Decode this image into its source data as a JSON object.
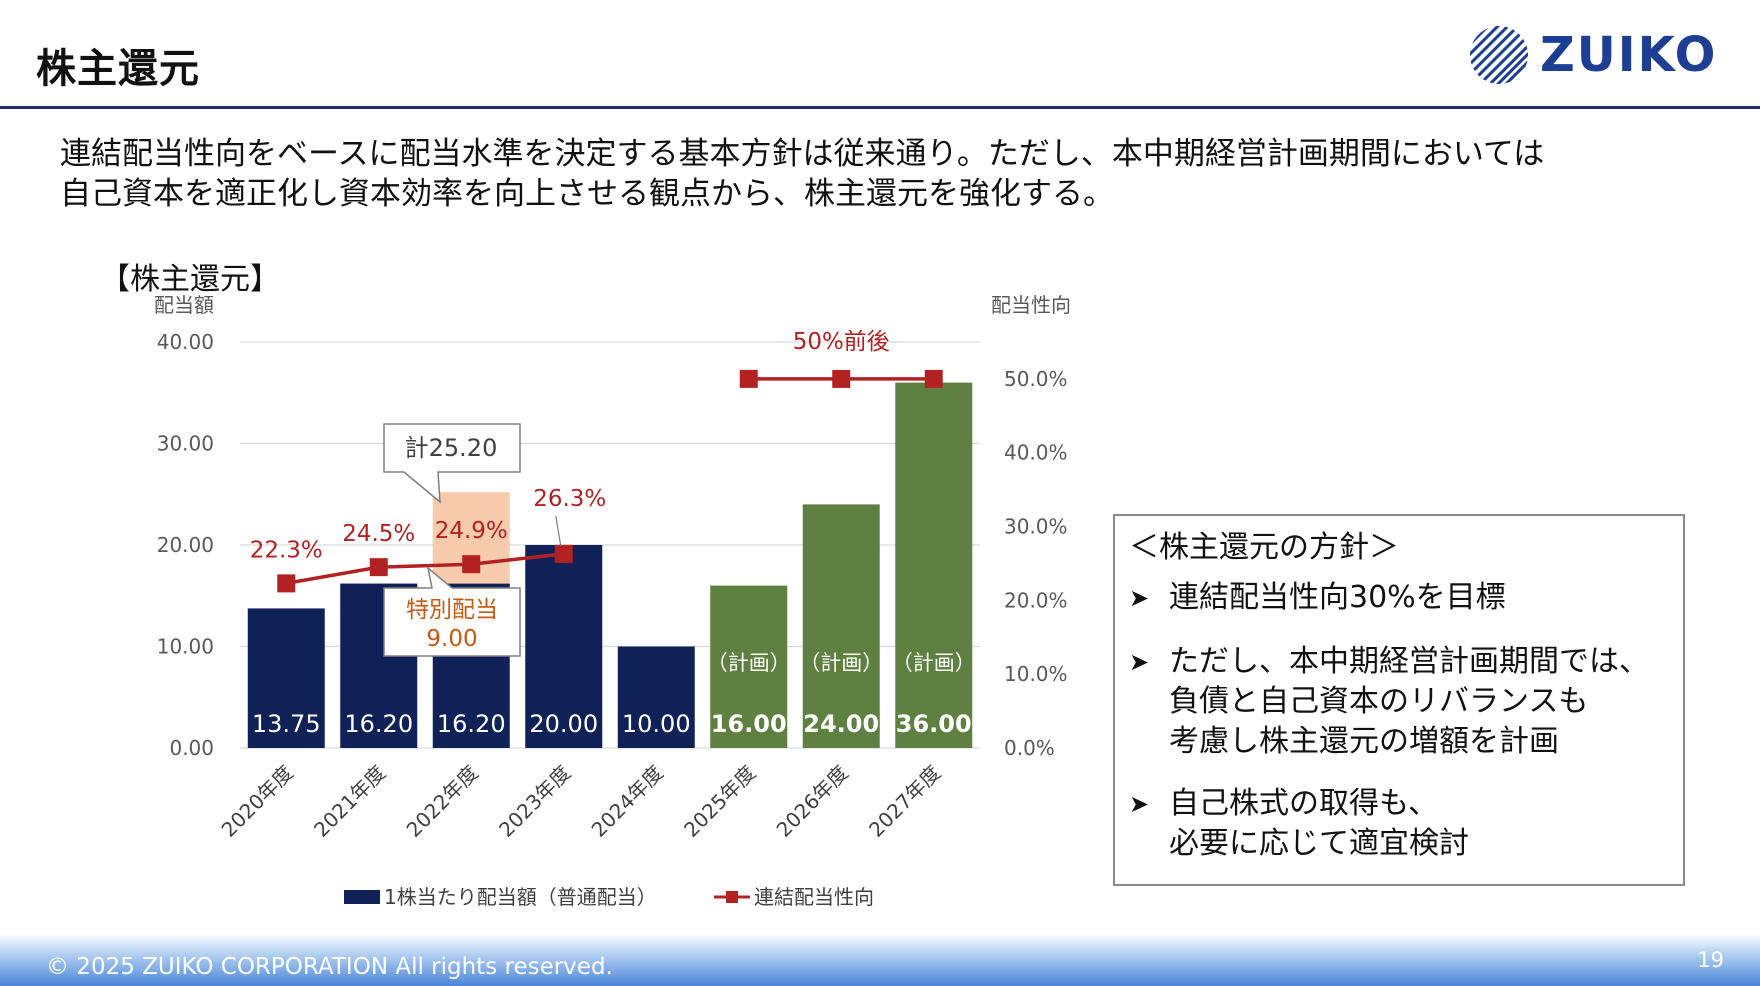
{
  "page": {
    "title": "株主還元",
    "logo_text": "ZUIKO",
    "intro_lines": [
      "連結配当性向をベースに配当水準を決定する基本方針は従来通り。ただし、本中期経営計画期間においては",
      "自己資本を適正化し資本効率を向上させる観点から、株主還元を強化する。"
    ],
    "chart_heading": "【株主還元】",
    "copyright": "© 2025 ZUIKO CORPORATION All rights reserved.",
    "page_number": "19"
  },
  "policy_box": {
    "heading": "＜株主還元の方針＞",
    "items": [
      {
        "lines": [
          "連結配当性向30%を目標"
        ]
      },
      {
        "lines": [
          "ただし、本中期経営計画期間では、",
          "負債と自己資本のリバランスも",
          "考慮し株主還元の増額を計画"
        ]
      },
      {
        "lines": [
          "自己株式の取得も、",
          "必要に応じて適宜検討"
        ]
      }
    ]
  },
  "chart_data": {
    "type": "bar",
    "categories": [
      "2020年度",
      "2021年度",
      "2022年度",
      "2023年度",
      "2024年度",
      "2025年度",
      "2026年度",
      "2027年度"
    ],
    "series": [
      {
        "name": "1株当たり配当額（普通配当）",
        "type": "bar",
        "values": [
          13.75,
          16.2,
          16.2,
          20.0,
          10.0,
          16.0,
          24.0,
          36.0
        ],
        "labels": [
          "13.75",
          "16.20",
          "16.20",
          "20.00",
          "10.00",
          "16.00",
          "24.00",
          "36.00"
        ]
      },
      {
        "name": "連結配当性向",
        "type": "line",
        "axis": "right",
        "values": [
          22.3,
          24.5,
          24.9,
          26.3,
          null,
          50.0,
          50.0,
          50.0
        ],
        "labels": [
          "22.3%",
          "24.5%",
          "24.9%",
          "26.3%"
        ]
      }
    ],
    "special_dividend": {
      "category": "2022年度",
      "value": 9.0,
      "label_lines": [
        "特別配当",
        "9.00"
      ]
    },
    "total_callout": "計25.20",
    "plan_label": "（計画）",
    "target_label": "50%前後",
    "left_axis": {
      "label": "配当額",
      "ylim": [
        0,
        40
      ],
      "ticks": [
        "0.00",
        "10.00",
        "20.00",
        "30.00",
        "40.00"
      ]
    },
    "right_axis": {
      "label": "配当性向",
      "ylim": [
        0,
        55
      ],
      "ticks": [
        "0.0%",
        "10.0%",
        "20.0%",
        "30.0%",
        "40.0%",
        "50.0%"
      ]
    },
    "legend_position": "bottom",
    "colors": {
      "actual_bar": "#0f2157",
      "plan_bar": "#5e8040",
      "special_bar": "#f8cbad",
      "line": "#b22222",
      "special_text": "#c55a11"
    }
  }
}
